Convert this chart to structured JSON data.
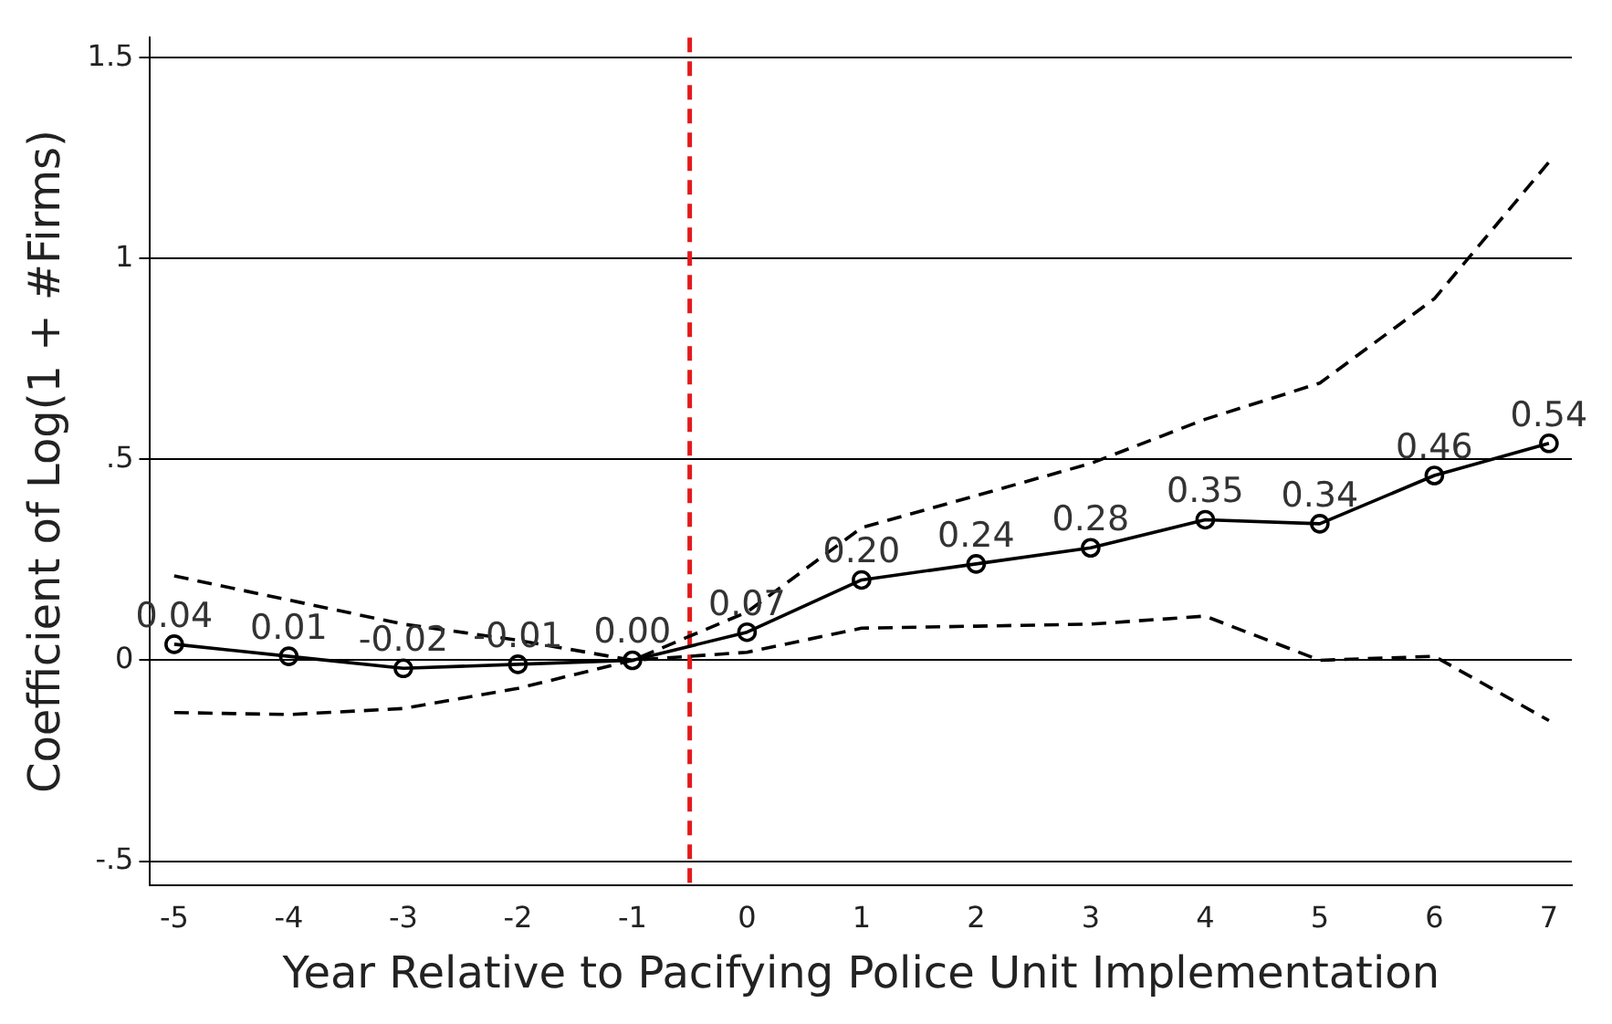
{
  "chart_data": {
    "type": "line",
    "xlabel": "Year Relative to Pacifying Police Unit Implementation",
    "ylabel": "Coefficient of Log(1 + #Firms)",
    "x": [
      -5,
      -4,
      -3,
      -2,
      -1,
      0,
      1,
      2,
      3,
      4,
      5,
      6,
      7
    ],
    "series": [
      {
        "color": "#000000",
        "marker": "circle",
        "line_style": "solid",
        "values": [
          0.04,
          0.01,
          -0.02,
          -0.01,
          0.0,
          0.07,
          0.2,
          0.24,
          0.28,
          0.35,
          0.34,
          0.46,
          0.54
        ],
        "value_labels": [
          "0.04",
          "0.01",
          "-0.02",
          "-0.01",
          "0.00",
          "0.07",
          "0.20",
          "0.24",
          "0.28",
          "0.35",
          "0.34",
          "0.46",
          "0.54"
        ]
      },
      {
        "color": "#000000",
        "marker": "none",
        "line_style": "dashed",
        "values": [
          0.21,
          0.15,
          0.09,
          0.05,
          0.0,
          0.12,
          0.33,
          0.41,
          0.49,
          0.6,
          0.69,
          0.9,
          1.24
        ]
      },
      {
        "color": "#000000",
        "marker": "none",
        "line_style": "dashed",
        "values": [
          -0.13,
          -0.135,
          -0.12,
          -0.07,
          0.0,
          0.02,
          0.08,
          0.085,
          0.09,
          0.11,
          0.0,
          0.01,
          -0.15
        ]
      }
    ],
    "xlim": [
      -5.21,
      7.2
    ],
    "xticks": [
      -5,
      -4,
      -3,
      -2,
      -1,
      0,
      1,
      2,
      3,
      4,
      5,
      6,
      7
    ],
    "ylim": [
      -0.56,
      1.55
    ],
    "yticks": [
      {
        "value": -0.5,
        "label": "-.5"
      },
      0,
      {
        "value": 0.5,
        "label": ".5"
      },
      1,
      1.5
    ],
    "grid": "y",
    "legend": false,
    "ref_lines": [
      {
        "axis": "x",
        "value": -0.5,
        "color": "#e31a1c",
        "line_style": "dashed"
      }
    ]
  }
}
